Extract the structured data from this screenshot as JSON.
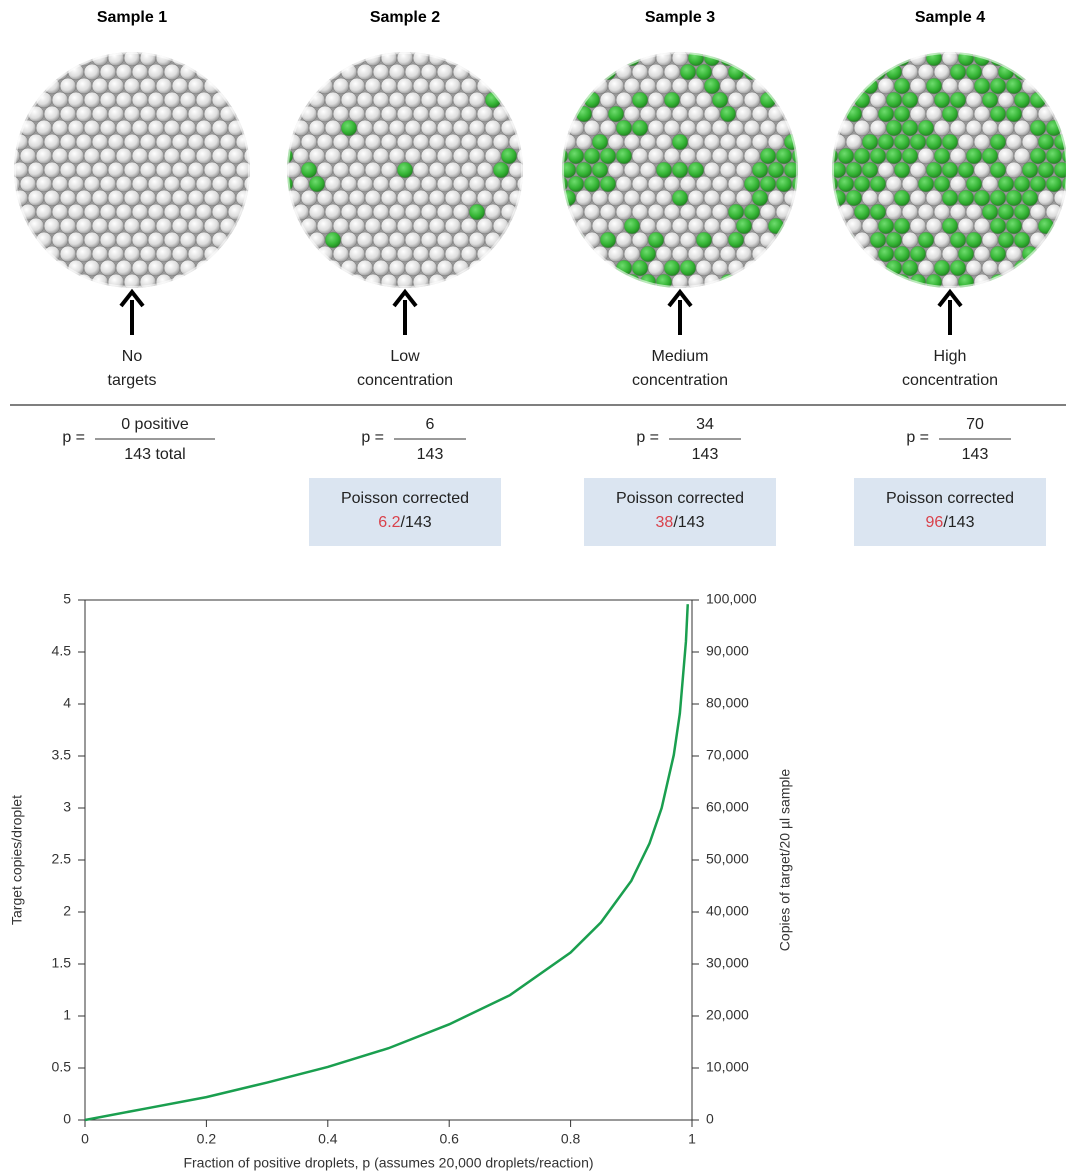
{
  "samples": [
    {
      "title": "Sample 1",
      "label": [
        "No",
        "targets"
      ],
      "p_label": "p =",
      "numerator": {
        "value": 0,
        "label": "0 positive"
      },
      "denominator": {
        "value": 143,
        "label": "143 total"
      }
    },
    {
      "title": "Sample 2",
      "label": [
        "Low",
        "concentration"
      ],
      "p_label": "p =",
      "numerator": 6,
      "denominator": 143,
      "poisson": {
        "label": "Poisson corrected",
        "value": 6.2,
        "rest": "/143"
      }
    },
    {
      "title": "Sample 3",
      "label": [
        "Medium",
        "concentration"
      ],
      "p_label": "p =",
      "numerator": 34,
      "denominator": 143,
      "poisson": {
        "label": "Poisson corrected",
        "value": 38,
        "rest": "/143"
      }
    },
    {
      "title": "Sample 4",
      "label": [
        "High",
        "concentration"
      ],
      "p_label": "p =",
      "numerator": 70,
      "denominator": 143,
      "poisson": {
        "label": "Poisson corrected",
        "value": 96,
        "rest": "/143"
      }
    }
  ],
  "chart_data": {
    "type": "line",
    "x": [
      0,
      0.1,
      0.2,
      0.3,
      0.4,
      0.5,
      0.6,
      0.7,
      0.8,
      0.85,
      0.9,
      0.93,
      0.95,
      0.97,
      0.98,
      0.99,
      0.993
    ],
    "series": [
      {
        "color": "#1a9f4f",
        "values": [
          0,
          0.11,
          0.22,
          0.36,
          0.51,
          0.69,
          0.92,
          1.2,
          1.61,
          1.9,
          2.3,
          2.66,
          3.0,
          3.51,
          3.91,
          4.6,
          4.96
        ]
      }
    ],
    "xlim": [
      0,
      1
    ],
    "ylim": [
      0,
      5
    ],
    "y2lim": [
      0,
      100000
    ],
    "xticks": [
      0,
      0.2,
      0.4,
      0.6,
      0.8,
      1
    ],
    "yticks": [
      0,
      0.5,
      1,
      1.5,
      2,
      2.5,
      3,
      3.5,
      4,
      4.5,
      5
    ],
    "y2ticks": [
      0,
      {
        "value": 10000,
        "label": "10,000"
      },
      {
        "value": 20000,
        "label": "20,000"
      },
      {
        "value": 30000,
        "label": "30,000"
      },
      {
        "value": 40000,
        "label": "40,000"
      },
      {
        "value": 50000,
        "label": "50,000"
      },
      {
        "value": 60000,
        "label": "60,000"
      },
      {
        "value": 70000,
        "label": "70,000"
      },
      {
        "value": 80000,
        "label": "80,000"
      },
      {
        "value": 90000,
        "label": "90,000"
      },
      {
        "value": 100000,
        "label": "100,000"
      }
    ],
    "xlabel": "Fraction of positive droplets, p (assumes 20,000 droplets/reaction)",
    "ylabel": "Target copies/droplet",
    "y2label": "Copies of target/20 µl sample"
  }
}
